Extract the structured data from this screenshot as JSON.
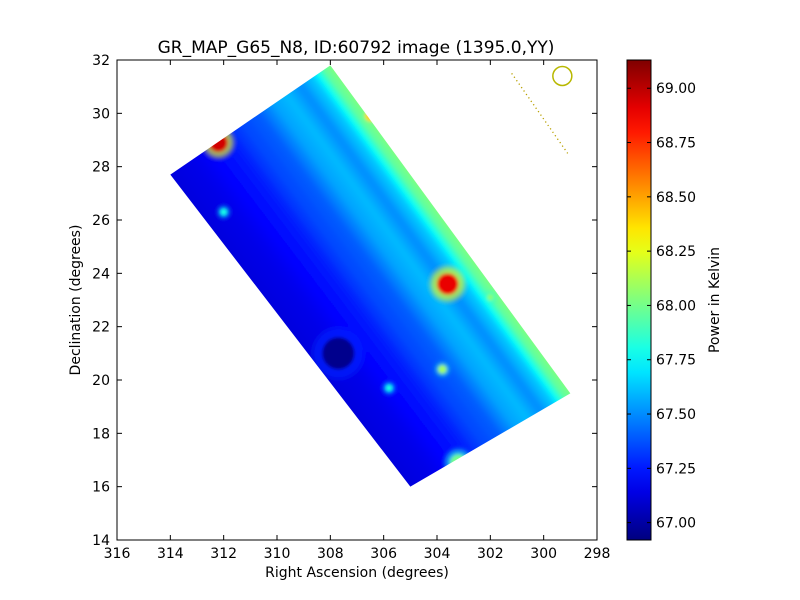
{
  "chart_data": {
    "type": "heatmap",
    "title": "GR_MAP_G65_N8, ID:60792 image (1395.0,YY)",
    "xlabel": "Right Ascension (degrees)",
    "ylabel": "Declination (degrees)",
    "colorbar_label": "Power in Kelvin",
    "xlim": [
      316,
      298
    ],
    "ylim": [
      14,
      32
    ],
    "x_ticks": [
      "316",
      "314",
      "312",
      "310",
      "308",
      "306",
      "304",
      "302",
      "300",
      "298"
    ],
    "y_ticks": [
      "14",
      "16",
      "18",
      "20",
      "22",
      "24",
      "26",
      "28",
      "30",
      "32"
    ],
    "colorbar_range": [
      66.92,
      69.13
    ],
    "colorbar_ticks": [
      "67.00",
      "67.25",
      "67.50",
      "67.75",
      "68.00",
      "68.25",
      "68.50",
      "68.75",
      "69.00"
    ],
    "colormap": [
      "#00007f",
      "#0000ff",
      "#007fff",
      "#00ffff",
      "#7fff7f",
      "#ffff00",
      "#ff7f00",
      "#ff0000",
      "#7f0000"
    ],
    "coverage_corners": [
      {
        "ra": 314.0,
        "dec": 27.7
      },
      {
        "ra": 308.0,
        "dec": 31.8
      },
      {
        "ra": 299.0,
        "dec": 19.5
      },
      {
        "ra": 305.0,
        "dec": 16.0
      }
    ],
    "bands": [
      {
        "t": 0.0,
        "value": 68.05
      },
      {
        "t": 0.06,
        "value": 67.95
      },
      {
        "t": 0.12,
        "value": 67.65
      },
      {
        "t": 0.2,
        "value": 67.5
      },
      {
        "t": 0.28,
        "value": 67.6
      },
      {
        "t": 0.36,
        "value": 67.55
      },
      {
        "t": 0.45,
        "value": 67.4
      },
      {
        "t": 0.55,
        "value": 67.35
      },
      {
        "t": 0.65,
        "value": 67.25
      },
      {
        "t": 0.75,
        "value": 67.2
      },
      {
        "t": 0.85,
        "value": 67.15
      },
      {
        "t": 1.0,
        "value": 67.12
      }
    ],
    "hot_spots": [
      {
        "ra": 312.2,
        "dec": 28.9,
        "value": 68.95,
        "radius_deg": 0.35
      },
      {
        "ra": 303.6,
        "dec": 23.6,
        "value": 68.9,
        "radius_deg": 0.4
      },
      {
        "ra": 303.8,
        "dec": 20.4,
        "value": 68.1,
        "radius_deg": 0.15
      },
      {
        "ra": 312.0,
        "dec": 26.3,
        "value": 67.8,
        "radius_deg": 0.12
      },
      {
        "ra": 305.8,
        "dec": 19.7,
        "value": 67.8,
        "radius_deg": 0.12
      },
      {
        "ra": 302.0,
        "dec": 23.1,
        "value": 68.05,
        "radius_deg": 0.12
      },
      {
        "ra": 306.5,
        "dec": 29.9,
        "value": 68.4,
        "radius_deg": 0.2
      },
      {
        "ra": 307.7,
        "dec": 21.0,
        "value": 66.95,
        "radius_deg": 0.6
      },
      {
        "ra": 303.2,
        "dec": 16.9,
        "value": 68.0,
        "radius_deg": 0.3
      }
    ],
    "beam_marker": {
      "ra": 299.3,
      "dec": 31.4,
      "color": "#b8b800"
    },
    "scan_line": {
      "from": {
        "ra": 301.2,
        "dec": 31.5
      },
      "to": {
        "ra": 299.1,
        "dec": 28.5
      },
      "color": "#b8a000"
    },
    "grid": false
  }
}
